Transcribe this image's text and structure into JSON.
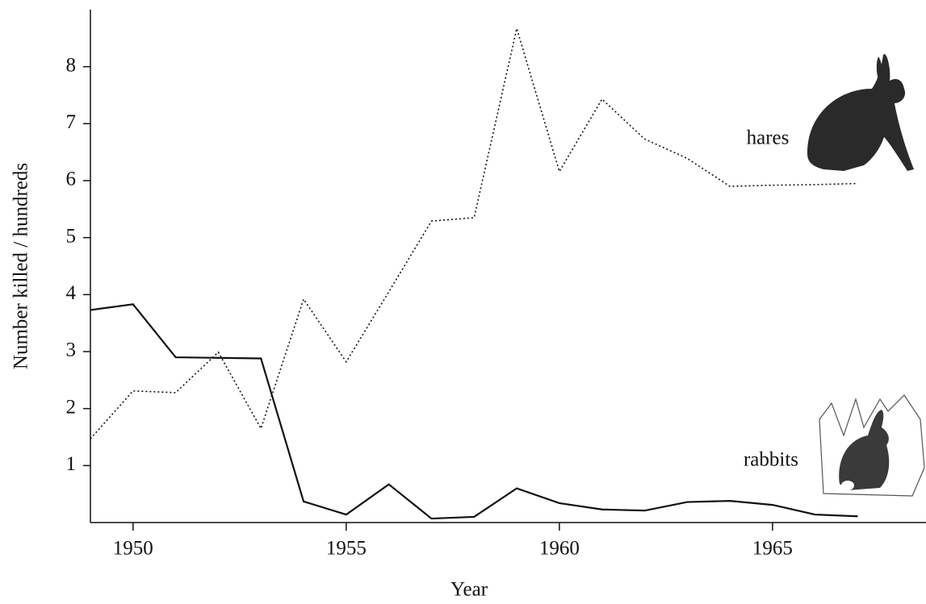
{
  "chart_data": {
    "type": "line",
    "x_label": "Year",
    "y_label": "Number killed / hundreds",
    "x": [
      1949,
      1950,
      1951,
      1952,
      1953,
      1954,
      1955,
      1956,
      1957,
      1958,
      1959,
      1960,
      1961,
      1962,
      1963,
      1964,
      1965,
      1966,
      1967
    ],
    "series": [
      {
        "name": "hares",
        "color": "#111111",
        "dash": "dotted",
        "values": [
          1.47,
          2.31,
          2.28,
          2.99,
          1.65,
          3.92,
          2.82,
          4.05,
          5.29,
          5.35,
          8.67,
          6.16,
          7.43,
          6.73,
          6.39,
          5.9,
          5.92,
          5.93,
          5.95
        ]
      },
      {
        "name": "rabbits",
        "color": "#111111",
        "dash": "solid",
        "values": [
          3.73,
          3.83,
          2.9,
          2.89,
          2.88,
          0.37,
          0.14,
          0.67,
          0.07,
          0.1,
          0.6,
          0.34,
          0.23,
          0.21,
          0.36,
          0.38,
          0.31,
          0.14,
          0.11
        ]
      }
    ],
    "xlim": [
      1949,
      1968.6
    ],
    "ylim": [
      0,
      9
    ],
    "xticks": [
      1950,
      1955,
      1960,
      1965
    ],
    "yticks": [
      1,
      2,
      3,
      4,
      5,
      6,
      7,
      8
    ],
    "grid": false
  }
}
